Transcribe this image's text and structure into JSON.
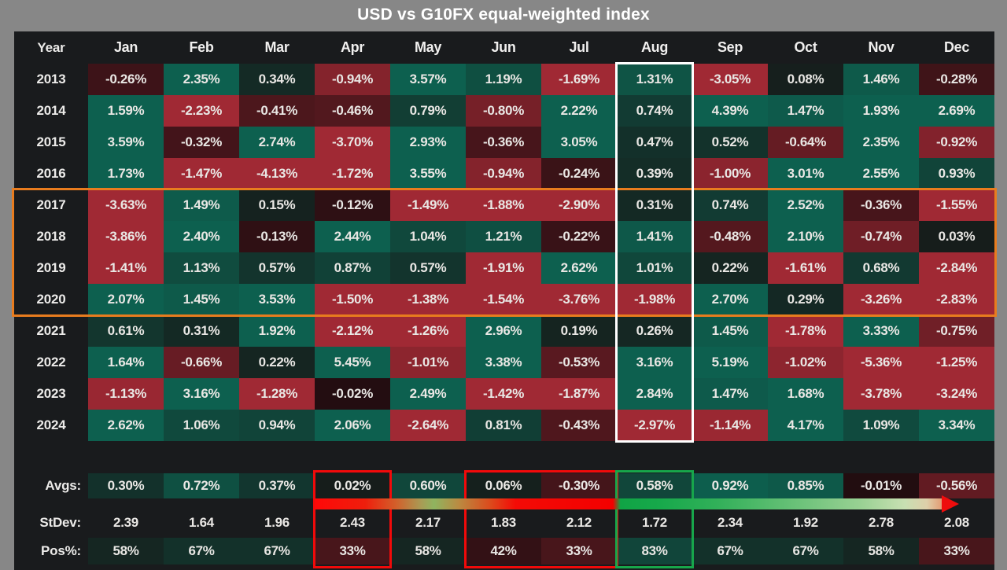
{
  "chart_data": {
    "type": "heatmap",
    "title": "USD vs G10FX equal-weighted index",
    "columns": [
      "Year",
      "Jan",
      "Feb",
      "Mar",
      "Apr",
      "May",
      "Jun",
      "Jul",
      "Aug",
      "Sep",
      "Oct",
      "Nov",
      "Dec"
    ],
    "rows": [
      {
        "year": "2013",
        "cells": [
          "-0.26%",
          "2.35%",
          "0.34%",
          "-0.94%",
          "3.57%",
          "1.19%",
          "-1.69%",
          "1.31%",
          "-3.05%",
          "0.08%",
          "1.46%",
          "-0.28%"
        ]
      },
      {
        "year": "2014",
        "cells": [
          "1.59%",
          "-2.23%",
          "-0.41%",
          "-0.46%",
          "0.79%",
          "-0.80%",
          "2.22%",
          "0.74%",
          "4.39%",
          "1.47%",
          "1.93%",
          "2.69%"
        ]
      },
      {
        "year": "2015",
        "cells": [
          "3.59%",
          "-0.32%",
          "2.74%",
          "-3.70%",
          "2.93%",
          "-0.36%",
          "3.05%",
          "0.47%",
          "0.52%",
          "-0.64%",
          "2.35%",
          "-0.92%"
        ]
      },
      {
        "year": "2016",
        "cells": [
          "1.73%",
          "-1.47%",
          "-4.13%",
          "-1.72%",
          "3.55%",
          "-0.94%",
          "-0.24%",
          "0.39%",
          "-1.00%",
          "3.01%",
          "2.55%",
          "0.93%"
        ]
      },
      {
        "year": "2017",
        "cells": [
          "-3.63%",
          "1.49%",
          "0.15%",
          "-0.12%",
          "-1.49%",
          "-1.88%",
          "-2.90%",
          "0.31%",
          "0.74%",
          "2.52%",
          "-0.36%",
          "-1.55%"
        ]
      },
      {
        "year": "2018",
        "cells": [
          "-3.86%",
          "2.40%",
          "-0.13%",
          "2.44%",
          "1.04%",
          "1.21%",
          "-0.22%",
          "1.41%",
          "-0.48%",
          "2.10%",
          "-0.74%",
          "0.03%"
        ]
      },
      {
        "year": "2019",
        "cells": [
          "-1.41%",
          "1.13%",
          "0.57%",
          "0.87%",
          "0.57%",
          "-1.91%",
          "2.62%",
          "1.01%",
          "0.22%",
          "-1.61%",
          "0.68%",
          "-2.84%"
        ]
      },
      {
        "year": "2020",
        "cells": [
          "2.07%",
          "1.45%",
          "3.53%",
          "-1.50%",
          "-1.38%",
          "-1.54%",
          "-3.76%",
          "-1.98%",
          "2.70%",
          "0.29%",
          "-3.26%",
          "-2.83%"
        ]
      },
      {
        "year": "2021",
        "cells": [
          "0.61%",
          "0.31%",
          "1.92%",
          "-2.12%",
          "-1.26%",
          "2.96%",
          "0.19%",
          "0.26%",
          "1.45%",
          "-1.78%",
          "3.33%",
          "-0.75%"
        ]
      },
      {
        "year": "2022",
        "cells": [
          "1.64%",
          "-0.66%",
          "0.22%",
          "5.45%",
          "-1.01%",
          "3.38%",
          "-0.53%",
          "3.16%",
          "5.19%",
          "-1.02%",
          "-5.36%",
          "-1.25%"
        ]
      },
      {
        "year": "2023",
        "cells": [
          "-1.13%",
          "3.16%",
          "-1.28%",
          "-0.02%",
          "2.49%",
          "-1.42%",
          "-1.87%",
          "2.84%",
          "1.47%",
          "1.68%",
          "-3.78%",
          "-3.24%"
        ]
      },
      {
        "year": "2024",
        "cells": [
          "2.62%",
          "1.06%",
          "0.94%",
          "2.06%",
          "-2.64%",
          "0.81%",
          "-0.43%",
          "-2.97%",
          "-1.14%",
          "4.17%",
          "1.09%",
          "3.34%"
        ]
      }
    ],
    "summary": {
      "avgs_label": "Avgs:",
      "avgs": [
        "0.30%",
        "0.72%",
        "0.37%",
        "0.02%",
        "0.60%",
        "0.06%",
        "-0.30%",
        "0.58%",
        "0.92%",
        "0.85%",
        "-0.01%",
        "-0.56%"
      ],
      "stdev_label": "StDev:",
      "stdev": [
        "2.39",
        "1.64",
        "1.96",
        "2.43",
        "2.17",
        "1.83",
        "2.12",
        "1.72",
        "2.34",
        "1.92",
        "2.78",
        "2.08"
      ],
      "pos_label": "Pos%:",
      "pos": [
        "58%",
        "67%",
        "67%",
        "33%",
        "58%",
        "42%",
        "33%",
        "83%",
        "67%",
        "67%",
        "58%",
        "33%"
      ]
    },
    "colors": {
      "positive_strong": "#0d5f4e",
      "negative_strong": "#a02934",
      "near_zero": "#171d1b",
      "table_background": "#191b1d",
      "frame_gray": "#878787"
    },
    "highlights": {
      "aug_column_box": {
        "column": "Aug",
        "color": "#ffffff"
      },
      "years_2017_2020_box": {
        "rows": "2017-2020",
        "color": "#e87c1e"
      },
      "apr_summary_box": {
        "column": "Apr",
        "color": "#f10a0a"
      },
      "jun_jul_summary_box": {
        "columns": "Jun-Jul",
        "color": "#f10a0a"
      },
      "aug_summary_box": {
        "column": "Aug",
        "color": "#17a64b"
      },
      "gradient_arrow": {
        "from_column": "Apr",
        "to_column": "Dec",
        "start_color": "#ff0808",
        "aug_color": "#17a94b",
        "arrowhead_color": "#ee0d0d"
      }
    },
    "legend_position": "none",
    "grid": false
  }
}
